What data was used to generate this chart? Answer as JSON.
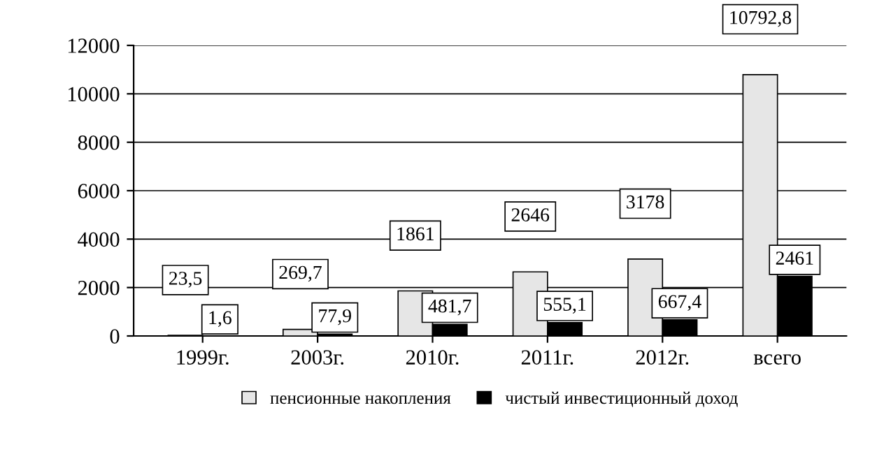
{
  "chart_data": {
    "type": "bar",
    "categories": [
      "1999г.",
      "2003г.",
      "2010г.",
      "2011г.",
      "2012г.",
      "всего"
    ],
    "series": [
      {
        "name": "пенсионные накопления",
        "color": "#e6e6e6",
        "values": [
          23.5,
          269.7,
          1861,
          2646,
          3178,
          10792.8
        ],
        "value_labels": [
          "23,5",
          "269,7",
          "1861",
          "2646",
          "3178",
          "10792,8"
        ]
      },
      {
        "name": "чистый инвестиционный доход",
        "color": "#000000",
        "values": [
          1.6,
          77.9,
          481.7,
          555.1,
          667.4,
          2461
        ],
        "value_labels": [
          "1,6",
          "77,9",
          "481,7",
          "555,1",
          "667,4",
          "2461"
        ]
      }
    ],
    "ylim": [
      0,
      12000
    ],
    "yticks": [
      0,
      2000,
      4000,
      6000,
      8000,
      10000,
      12000
    ],
    "grid": "y",
    "legend": "bottom"
  }
}
